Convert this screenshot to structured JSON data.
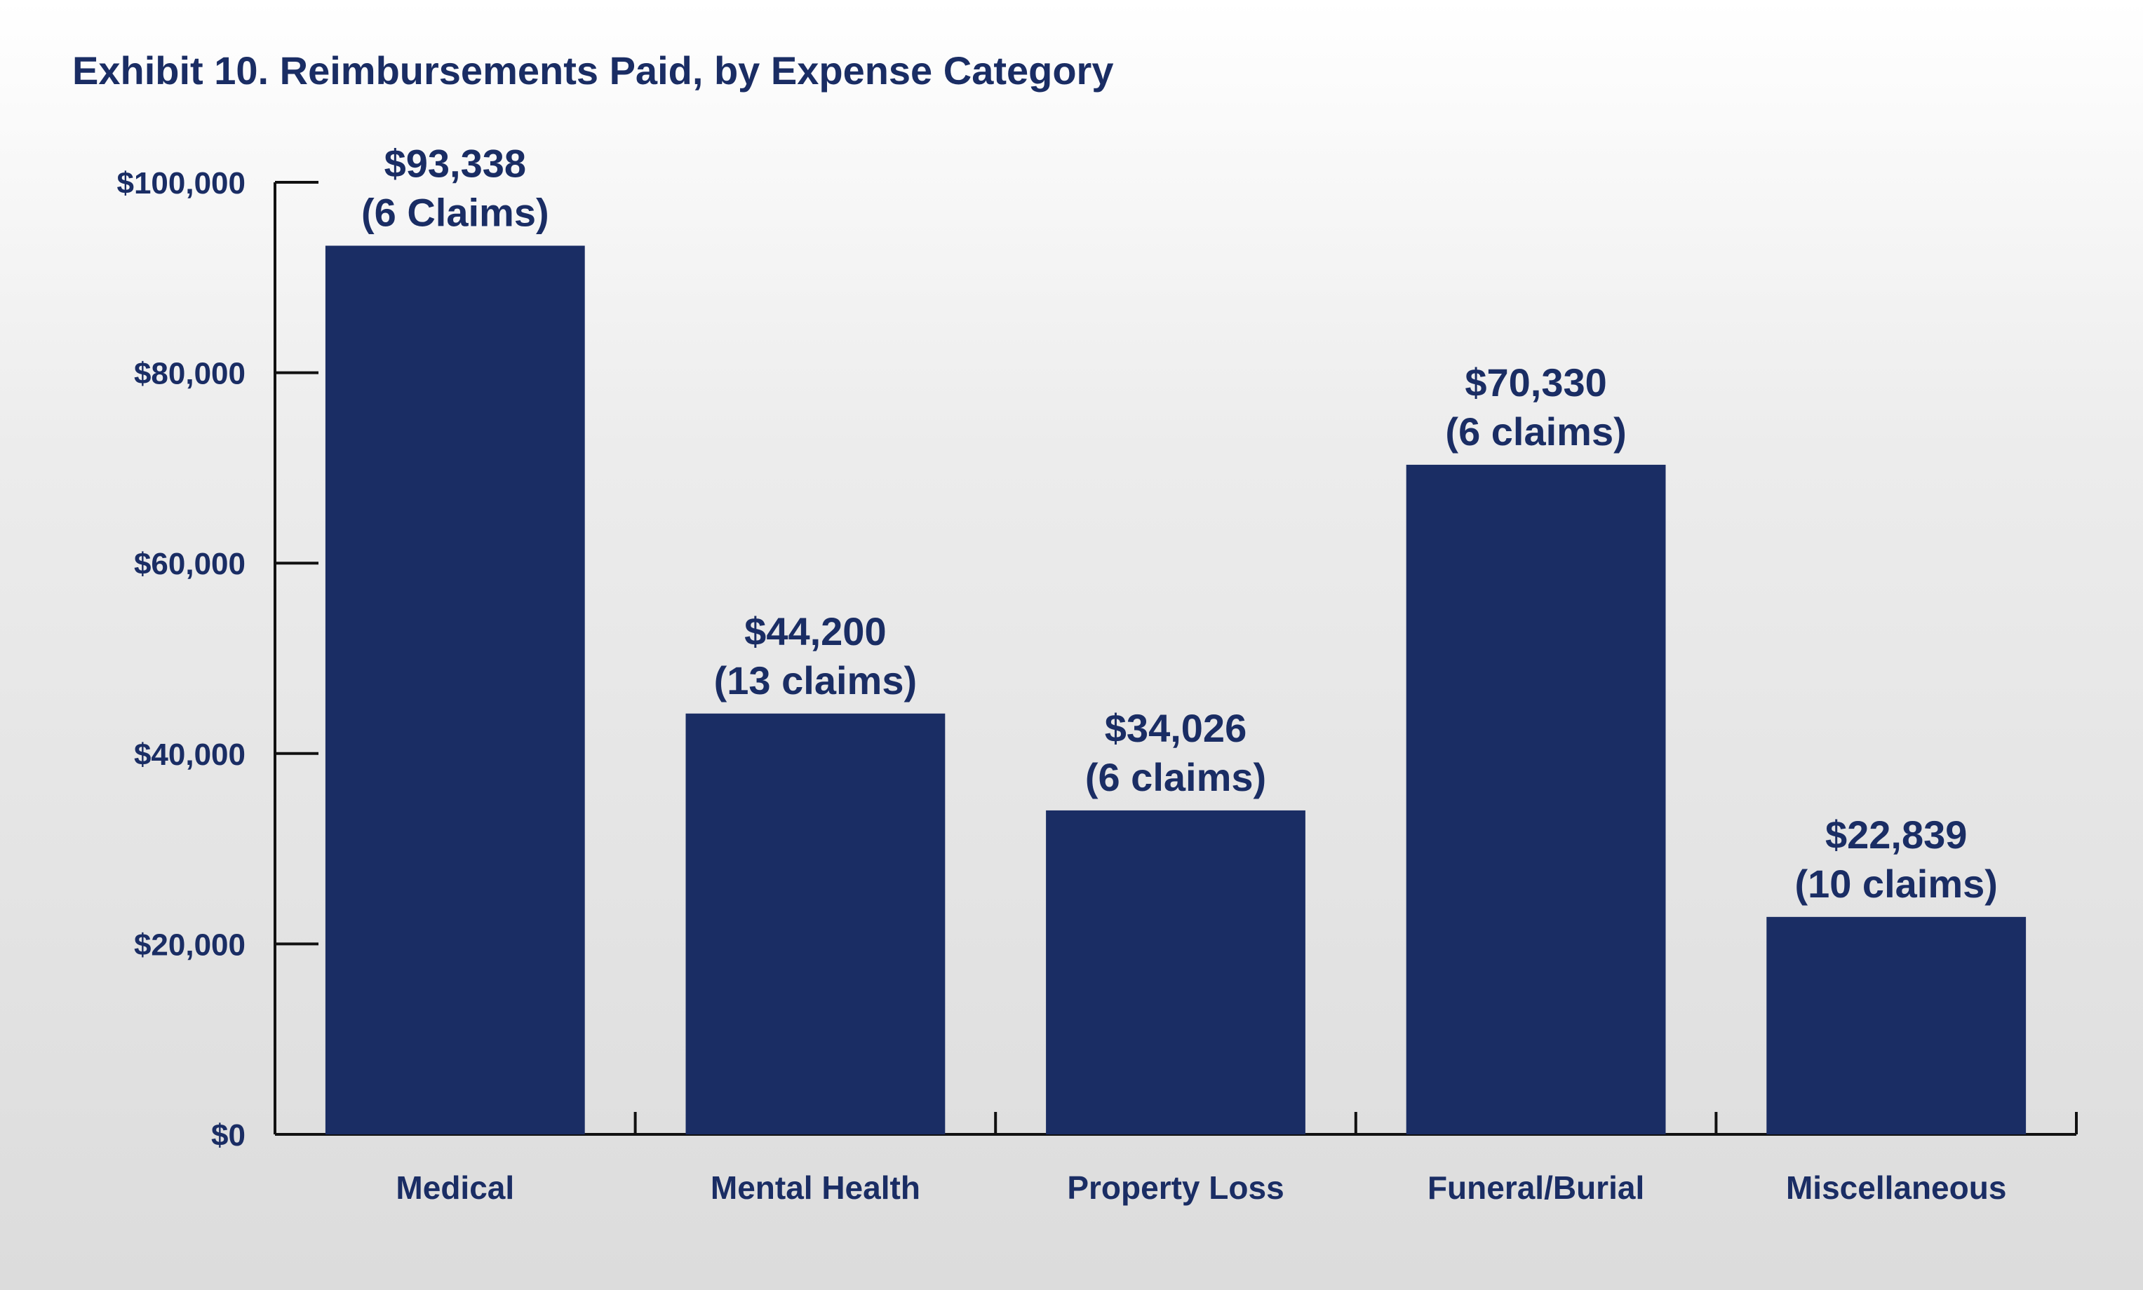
{
  "chart_data": {
    "type": "bar",
    "title": "Exhibit 10. Reimbursements Paid, by Expense Category",
    "xlabel": "",
    "ylabel": "",
    "categories": [
      "Medical",
      "Mental Health",
      "Property Loss",
      "Funeral/Burial",
      "Miscellaneous"
    ],
    "values": [
      93338,
      44200,
      34026,
      70330,
      22839
    ],
    "value_labels": [
      "$93,338",
      "$44,200",
      "$34,026",
      "$70,330",
      "$22,839"
    ],
    "claim_labels": [
      "(6 Claims)",
      "(13 claims)",
      "(6 claims)",
      "(6 claims)",
      "(10 claims)"
    ],
    "ylim": [
      0,
      100000
    ],
    "yticks": [
      0,
      20000,
      40000,
      60000,
      80000,
      100000
    ],
    "ytick_labels": [
      "$0",
      "$20,000",
      "$40,000",
      "$60,000",
      "$80,000",
      "$100,000"
    ],
    "grid": false,
    "legend": "none",
    "bar_color": "#1a2d64",
    "text_color": "#1a2d64"
  }
}
